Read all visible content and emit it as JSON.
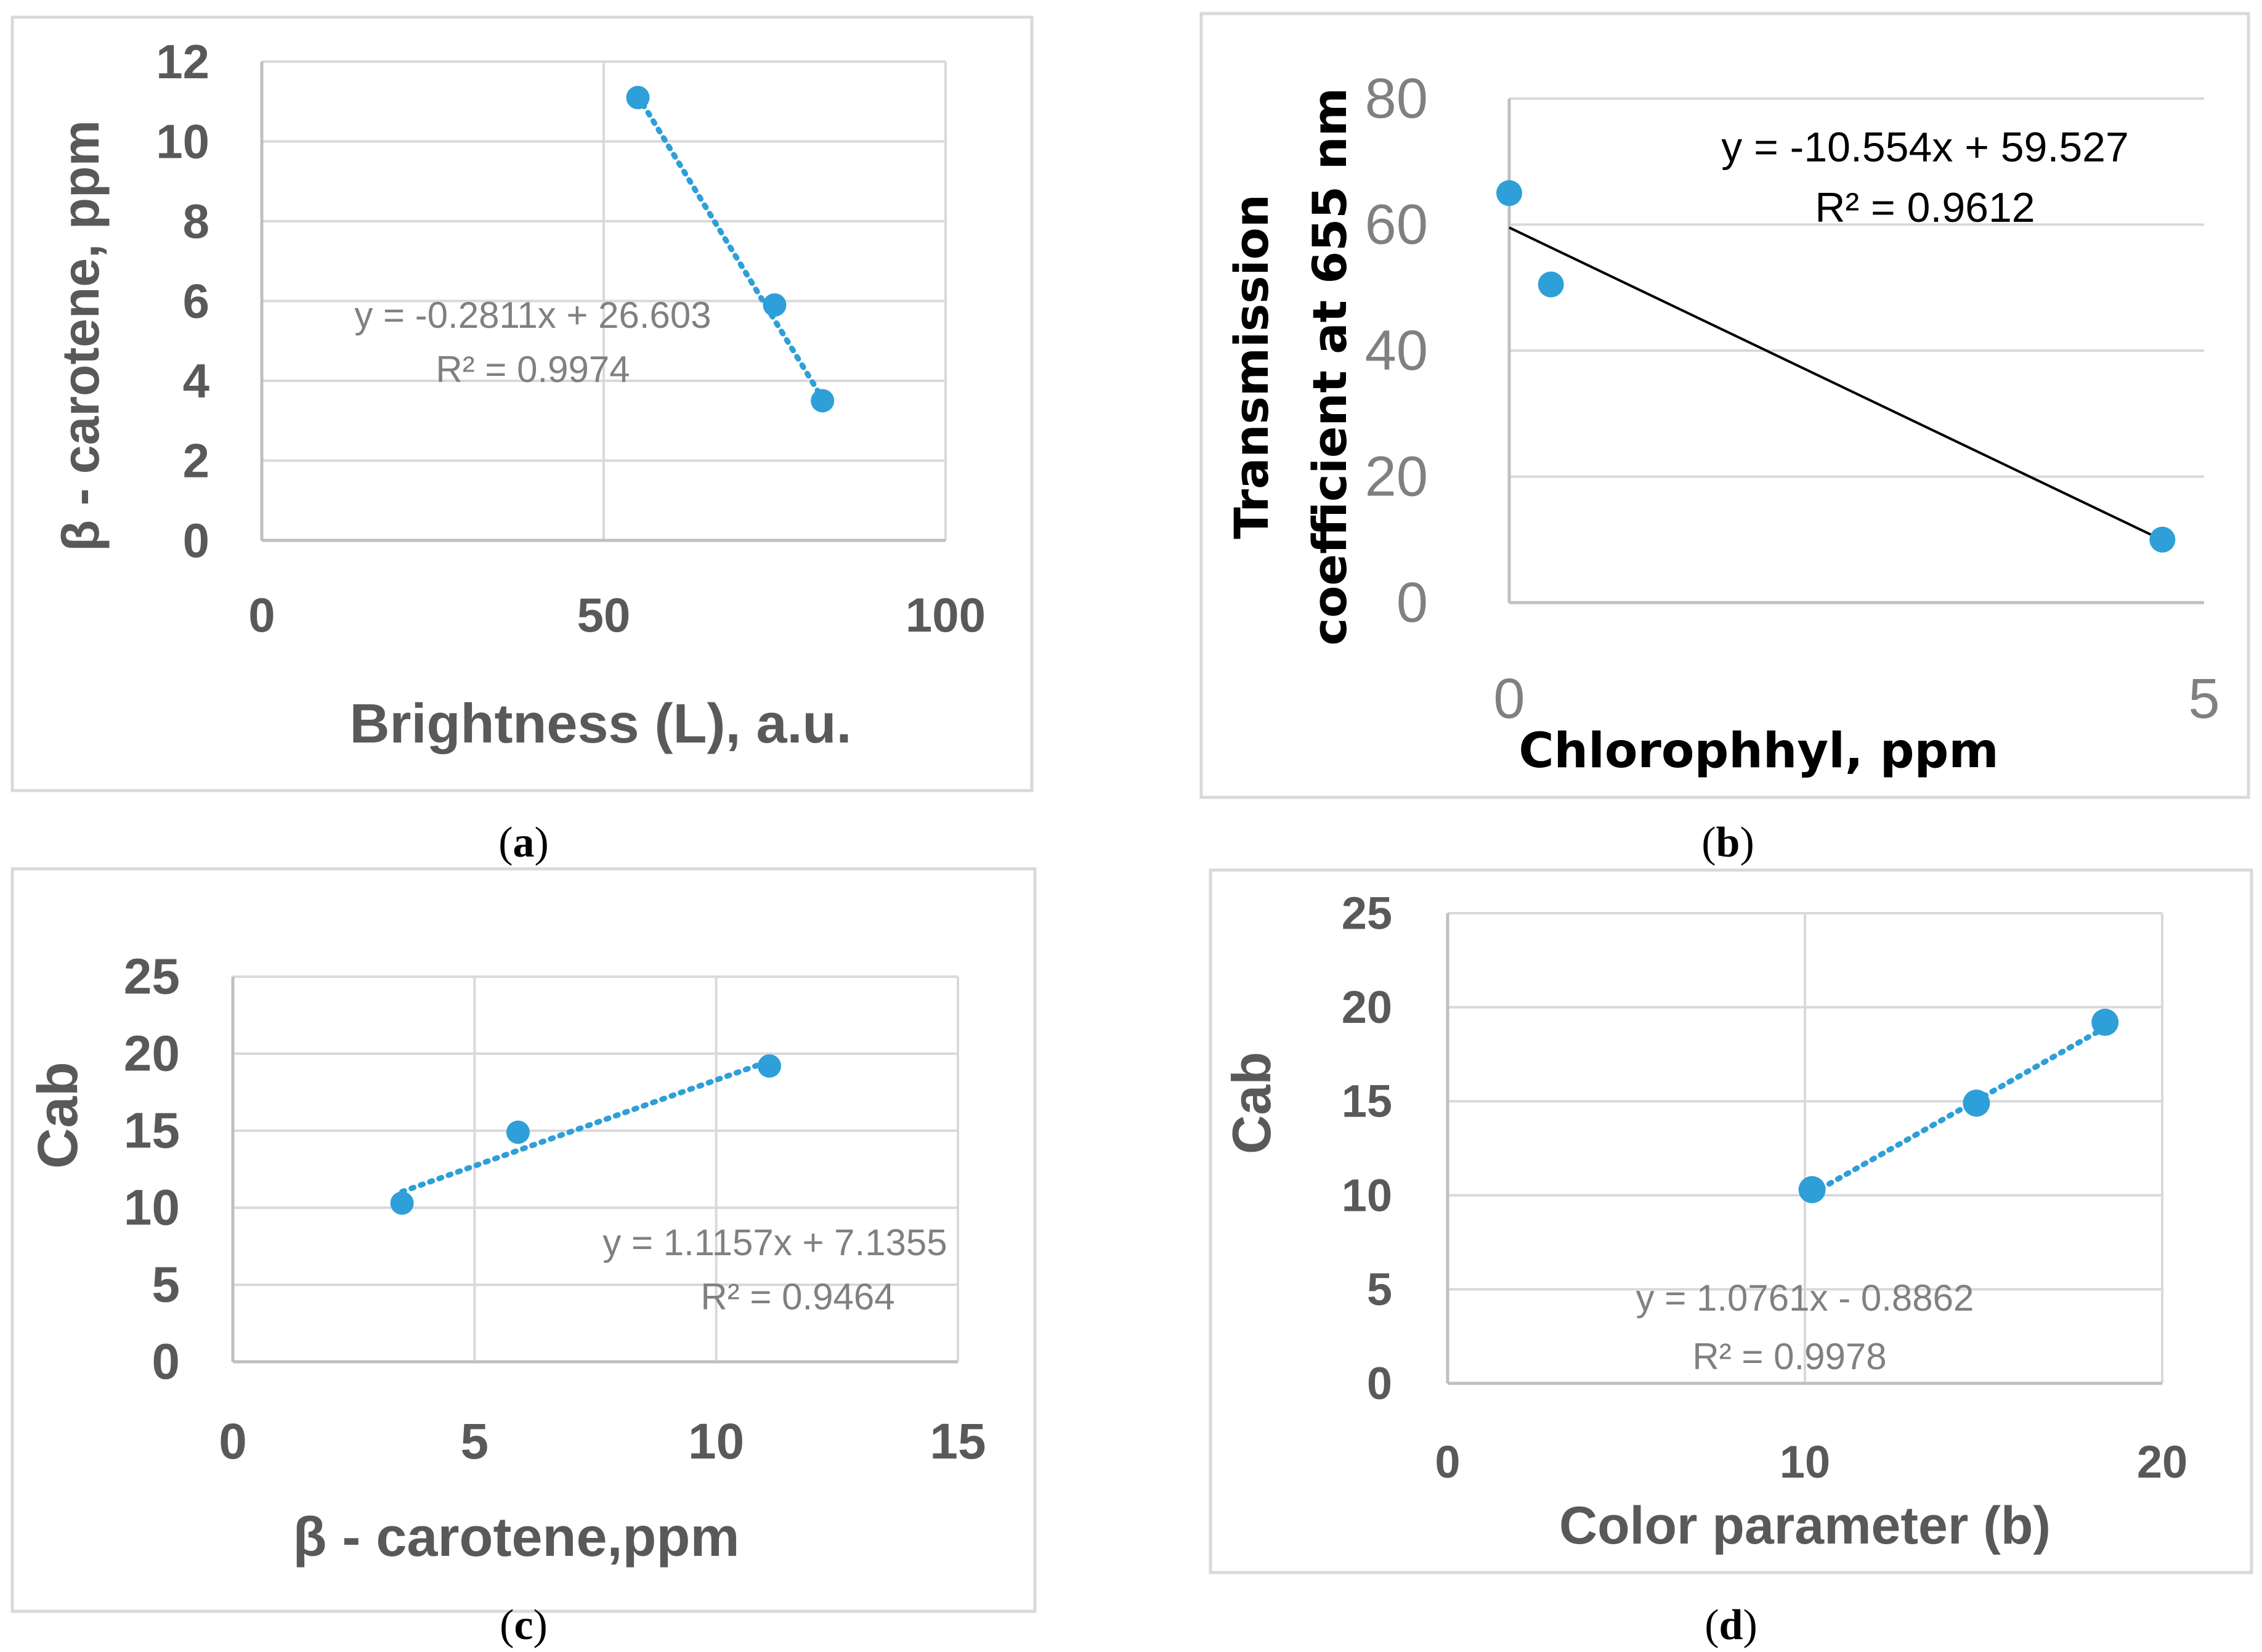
{
  "chart_data": [
    {
      "id": "a",
      "type": "scatter",
      "caption": "a",
      "xlabel": "Brightness (L), a.u.",
      "ylabel": "β - carotene, ppm",
      "xlim": [
        0,
        100
      ],
      "ylim": [
        0,
        12
      ],
      "xticks": [
        0,
        50,
        100
      ],
      "yticks": [
        0,
        2,
        4,
        6,
        8,
        10,
        12
      ],
      "x": [
        55,
        75,
        82
      ],
      "y": [
        11.1,
        5.9,
        3.5
      ],
      "trendline": {
        "style": "dotted",
        "slope": -0.2811,
        "intercept": 26.603,
        "x_from": 55,
        "x_to": 82
      },
      "equation": "y = -0.2811x + 26.603",
      "r2": "R² = 0.9974"
    },
    {
      "id": "b",
      "type": "scatter",
      "caption": "b",
      "xlabel": "Chlorophhyl, ppm",
      "ylabel_lines": [
        "Transmission",
        "coefficient at 655 nm"
      ],
      "xlim": [
        0,
        5
      ],
      "ylim": [
        0,
        80
      ],
      "xticks": [
        0,
        5
      ],
      "yticks": [
        0,
        20,
        40,
        60,
        80
      ],
      "x": [
        0,
        0.3,
        4.7
      ],
      "y": [
        65,
        50.5,
        10
      ],
      "trendline": {
        "style": "solid",
        "slope": -10.554,
        "intercept": 59.527,
        "x_from": 0,
        "x_to": 4.7
      },
      "equation": "y = -10.554x + 59.527",
      "r2": "R² = 0.9612"
    },
    {
      "id": "c",
      "type": "scatter",
      "caption": "c",
      "xlabel": "β - carotene,ppm",
      "ylabel": "Cab",
      "xlim": [
        0,
        15
      ],
      "ylim": [
        0,
        25
      ],
      "xticks": [
        0,
        5,
        10,
        15
      ],
      "yticks": [
        0,
        5,
        10,
        15,
        20,
        25
      ],
      "x": [
        3.5,
        5.9,
        11.1
      ],
      "y": [
        10.3,
        14.9,
        19.2
      ],
      "trendline": {
        "style": "dotted",
        "slope": 1.1157,
        "intercept": 7.1355,
        "x_from": 3.5,
        "x_to": 11.1
      },
      "equation": "y = 1.1157x + 7.1355",
      "r2": "R² = 0.9464"
    },
    {
      "id": "d",
      "type": "scatter",
      "caption": "d",
      "xlabel": "Color parameter (b)",
      "ylabel": "Cab",
      "xlim": [
        0,
        20
      ],
      "ylim": [
        0,
        25
      ],
      "xticks": [
        0,
        10,
        20
      ],
      "yticks": [
        0,
        5,
        10,
        15,
        20,
        25
      ],
      "x": [
        10.2,
        14.8,
        18.4
      ],
      "y": [
        10.3,
        14.9,
        19.2
      ],
      "trendline": {
        "style": "dotted",
        "slope": 1.0761,
        "intercept": -0.8862,
        "x_from": 10.2,
        "x_to": 18.4
      },
      "equation": "y = 1.0761x - 0.8862",
      "r2": "R² = 0.9978"
    }
  ],
  "colors": {
    "marker": "#2e9fd8",
    "grid": "#d9d9d9",
    "label_gray": "#595959",
    "equation_gray": "#808080"
  }
}
